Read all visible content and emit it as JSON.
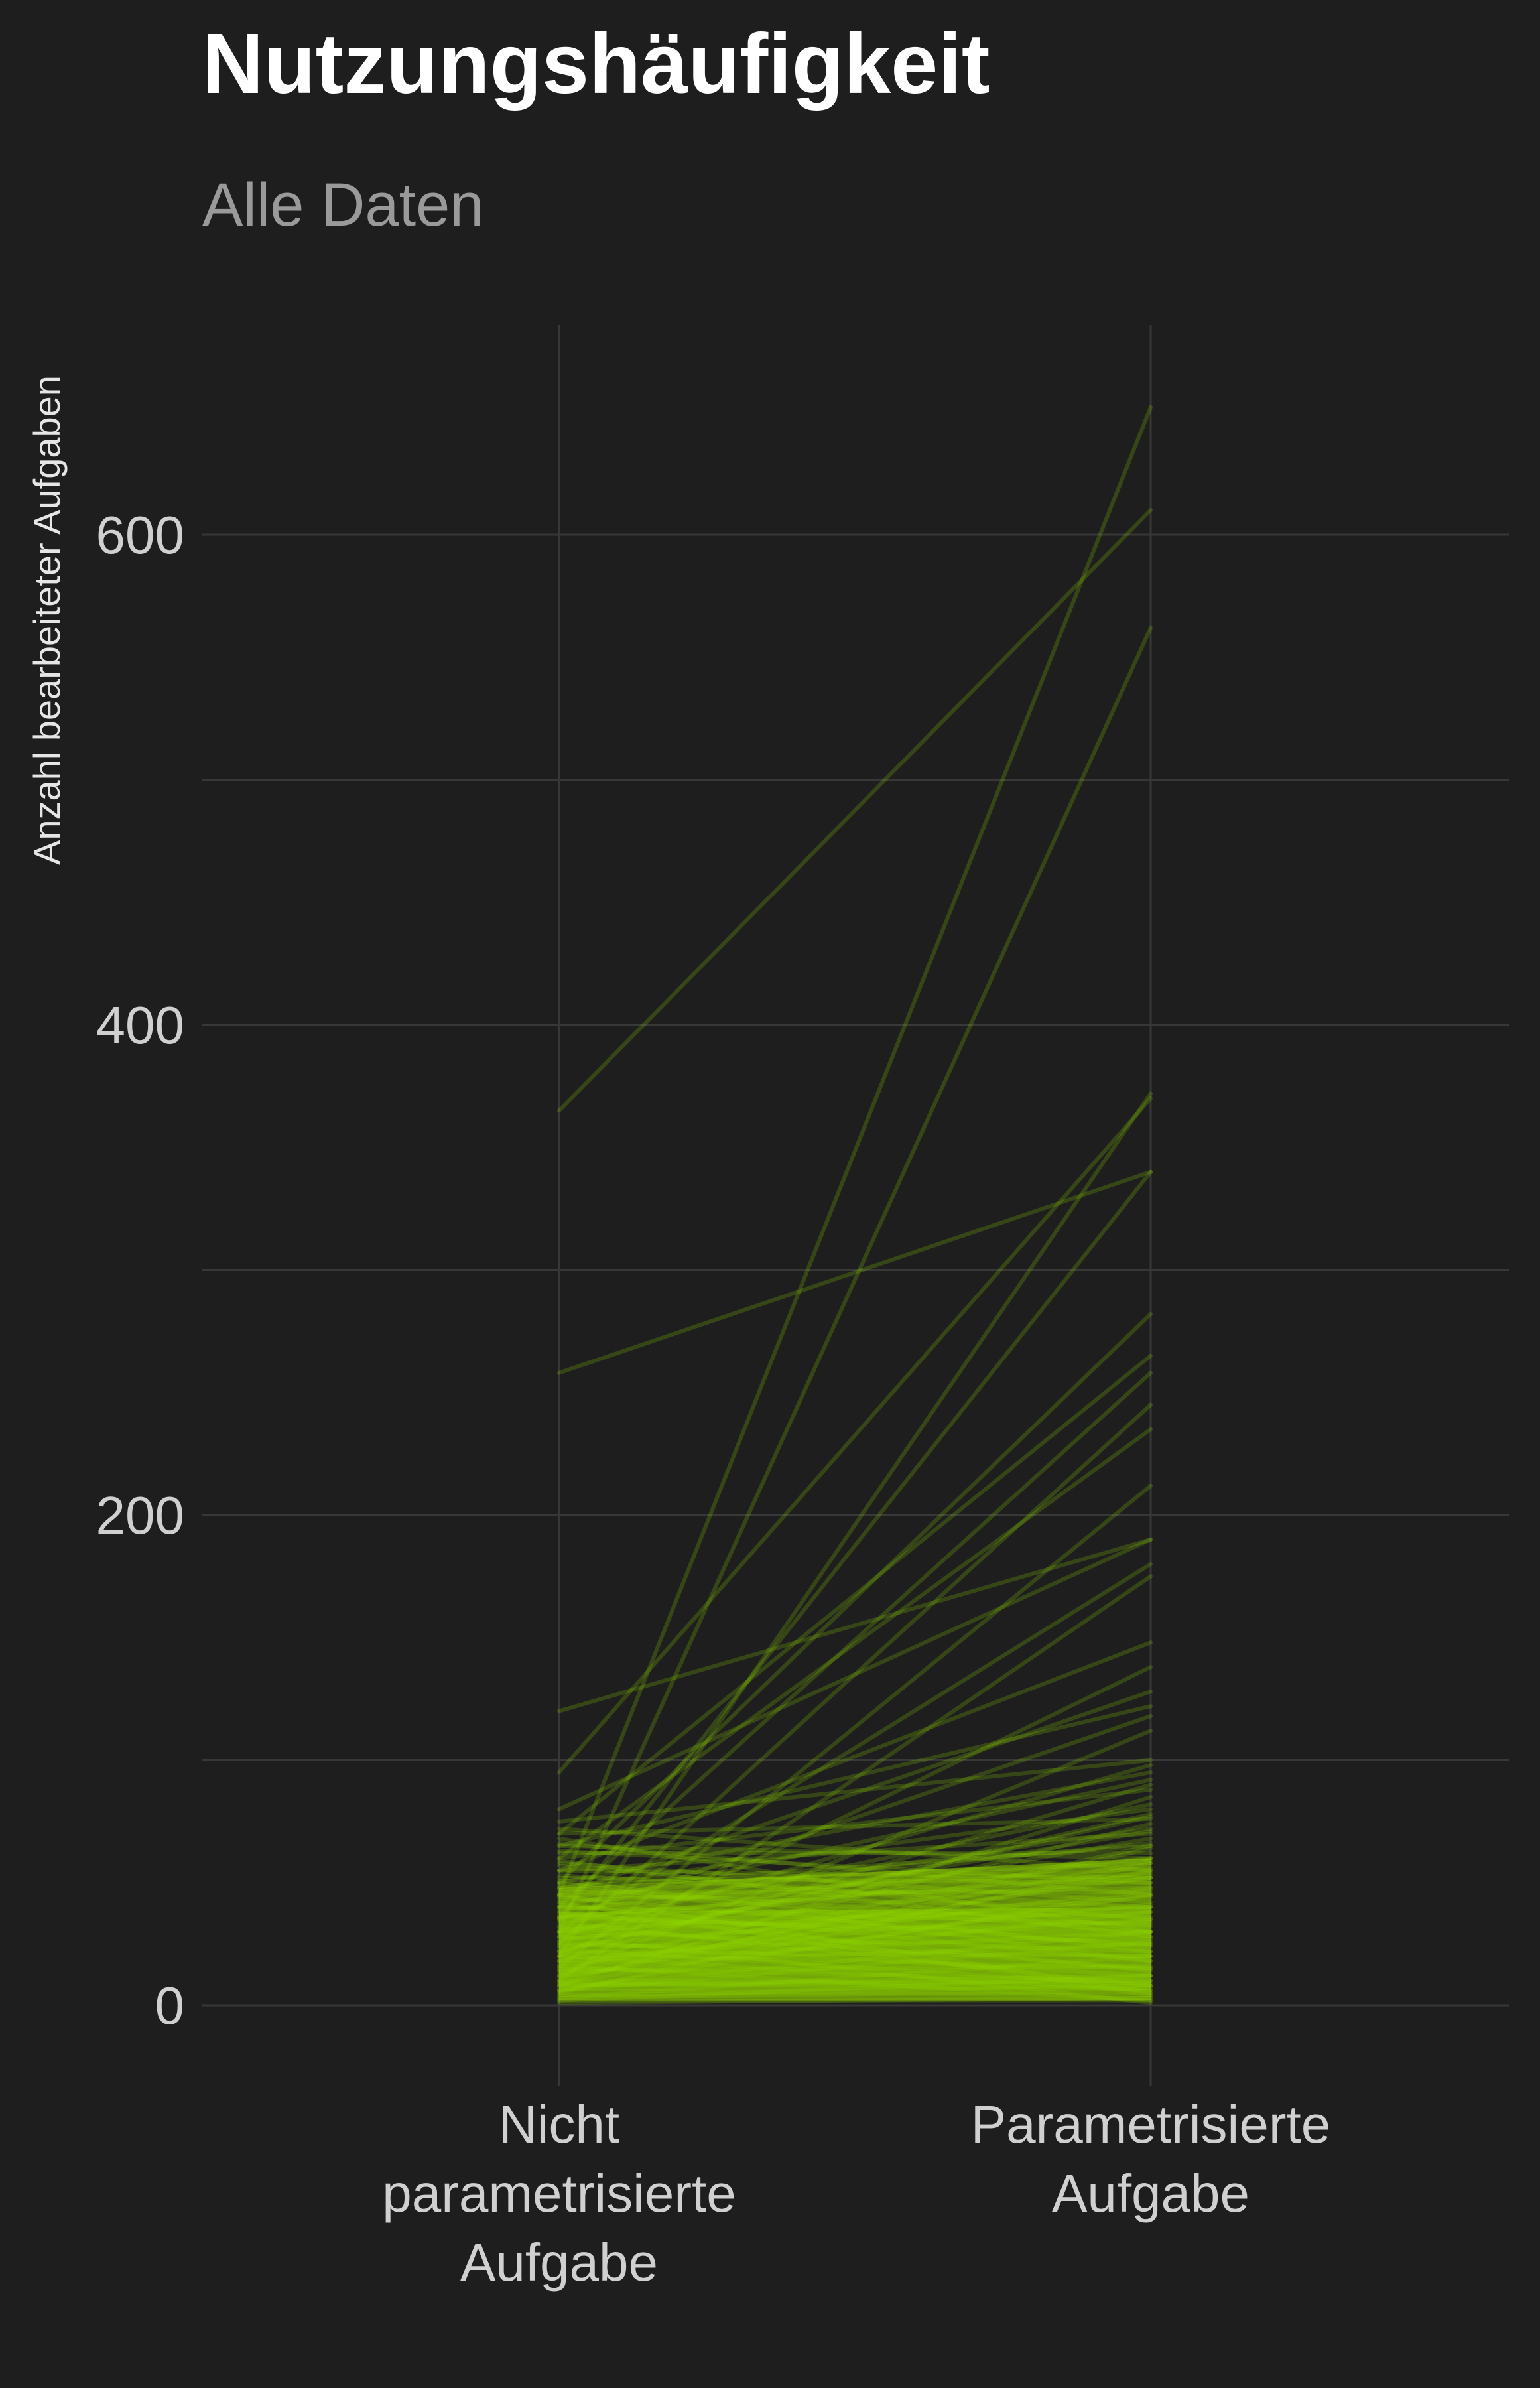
{
  "chart_data": {
    "type": "line",
    "title": "Nutzungshäufigkeit",
    "subtitle": "Alle Daten",
    "xlabel": "",
    "ylabel": "Anzahl bearbeiteter Aufgaben",
    "categories": [
      [
        "Nicht",
        "parametrisierte",
        "Aufgabe"
      ],
      [
        "Parametrisierte",
        "Aufgabe"
      ]
    ],
    "y_ticks": [
      "0",
      "200",
      "400",
      "600"
    ],
    "ylim": [
      -30,
      685
    ],
    "grid": true,
    "legend": "none",
    "line_color": "#8fd400",
    "background": "#1e1e1e",
    "segments": [
      [
        365,
        610
      ],
      [
        258,
        340
      ],
      [
        45,
        652
      ],
      [
        30,
        562
      ],
      [
        120,
        190
      ],
      [
        20,
        372
      ],
      [
        95,
        370
      ],
      [
        35,
        340
      ],
      [
        50,
        282
      ],
      [
        70,
        265
      ],
      [
        40,
        258
      ],
      [
        25,
        245
      ],
      [
        60,
        235
      ],
      [
        15,
        212
      ],
      [
        80,
        190
      ],
      [
        30,
        180
      ],
      [
        10,
        175
      ],
      [
        55,
        148
      ],
      [
        20,
        138
      ],
      [
        45,
        128
      ],
      [
        65,
        122
      ],
      [
        35,
        118
      ],
      [
        12,
        112
      ],
      [
        75,
        100
      ],
      [
        28,
        98
      ],
      [
        50,
        95
      ],
      [
        40,
        92
      ],
      [
        18,
        90
      ],
      [
        60,
        88
      ],
      [
        8,
        85
      ],
      [
        33,
        82
      ],
      [
        48,
        80
      ],
      [
        22,
        78
      ],
      [
        70,
        76
      ],
      [
        14,
        74
      ],
      [
        38,
        72
      ],
      [
        55,
        70
      ],
      [
        26,
        68
      ],
      [
        44,
        66
      ],
      [
        10,
        64
      ],
      [
        62,
        62
      ],
      [
        30,
        60
      ],
      [
        5,
        58
      ],
      [
        42,
        56
      ],
      [
        36,
        54
      ],
      [
        20,
        52
      ],
      [
        52,
        50
      ],
      [
        16,
        48
      ],
      [
        46,
        46
      ],
      [
        24,
        44
      ],
      [
        58,
        42
      ],
      [
        32,
        40
      ],
      [
        12,
        38
      ],
      [
        40,
        36
      ],
      [
        28,
        34
      ],
      [
        48,
        32
      ],
      [
        18,
        30
      ],
      [
        36,
        28
      ],
      [
        6,
        26
      ],
      [
        44,
        24
      ],
      [
        30,
        22
      ],
      [
        22,
        20
      ],
      [
        50,
        18
      ],
      [
        14,
        16
      ],
      [
        38,
        14
      ],
      [
        26,
        12
      ],
      [
        8,
        10
      ],
      [
        34,
        8
      ],
      [
        20,
        6
      ],
      [
        42,
        4
      ],
      [
        4,
        3
      ],
      [
        16,
        2
      ],
      [
        28,
        1
      ],
      [
        45,
        5
      ],
      [
        10,
        9
      ],
      [
        32,
        15
      ],
      [
        24,
        27
      ],
      [
        40,
        33
      ],
      [
        18,
        41
      ],
      [
        6,
        47
      ],
      [
        36,
        53
      ],
      [
        12,
        59
      ],
      [
        48,
        65
      ],
      [
        30,
        71
      ],
      [
        22,
        77
      ],
      [
        3,
        20
      ],
      [
        2,
        12
      ],
      [
        7,
        30
      ],
      [
        9,
        45
      ],
      [
        11,
        55
      ],
      [
        13,
        65
      ],
      [
        17,
        25
      ],
      [
        19,
        35
      ],
      [
        21,
        15
      ],
      [
        23,
        8
      ],
      [
        27,
        45
      ],
      [
        29,
        52
      ],
      [
        31,
        38
      ],
      [
        37,
        25
      ],
      [
        39,
        60
      ],
      [
        41,
        18
      ],
      [
        43,
        48
      ],
      [
        47,
        30
      ],
      [
        49,
        58
      ],
      [
        51,
        22
      ],
      [
        53,
        40
      ],
      [
        57,
        35
      ],
      [
        59,
        28
      ],
      [
        63,
        50
      ],
      [
        66,
        45
      ],
      [
        72,
        55
      ],
      [
        68,
        30
      ],
      [
        5,
        5
      ],
      [
        4,
        8
      ],
      [
        6,
        4
      ],
      [
        3,
        6
      ],
      [
        8,
        12
      ],
      [
        15,
        10
      ],
      [
        25,
        20
      ],
      [
        35,
        30
      ],
      [
        45,
        40
      ],
      [
        55,
        52
      ],
      [
        65,
        60
      ],
      [
        1,
        3
      ],
      [
        2,
        2
      ],
      [
        9,
        7
      ]
    ]
  }
}
